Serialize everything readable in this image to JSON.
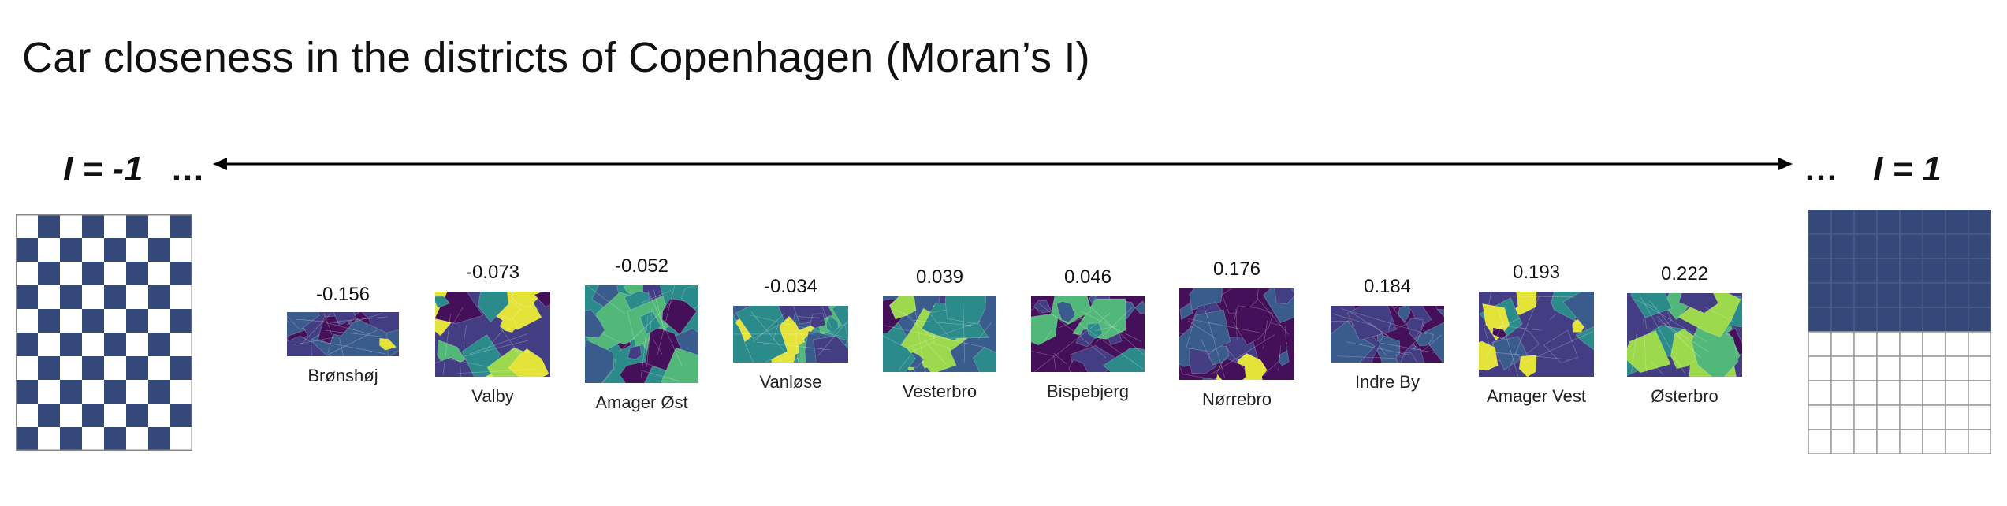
{
  "title": "Car closeness in the districts of Copenhagen (Moran’s I)",
  "scale": {
    "left_label": "I = -1",
    "left_ellipsis": "…",
    "right_label": "I = 1",
    "right_ellipsis": "…"
  },
  "colors": {
    "navy": "#34497a",
    "viridis_dark": "#45105a",
    "viridis_purple": "#433d84",
    "viridis_blue": "#3a5c8c",
    "viridis_teal": "#2b8a8a",
    "viridis_green": "#52b87a",
    "viridis_lime": "#9cd94c",
    "viridis_yellow": "#e4e33a"
  },
  "districts": [
    {
      "name": "Brønshøj",
      "value": "-0.156"
    },
    {
      "name": "Valby",
      "value": "-0.073"
    },
    {
      "name": "Amager Øst",
      "value": "-0.052"
    },
    {
      "name": "Vanløse",
      "value": "-0.034"
    },
    {
      "name": "Vesterbro",
      "value": "0.039"
    },
    {
      "name": "Bispebjerg",
      "value": "0.046"
    },
    {
      "name": "Nørrebro",
      "value": "0.176"
    },
    {
      "name": "Indre By",
      "value": "0.184"
    },
    {
      "name": "Amager Vest",
      "value": "0.193"
    },
    {
      "name": "Østerbro",
      "value": "0.222"
    }
  ]
}
